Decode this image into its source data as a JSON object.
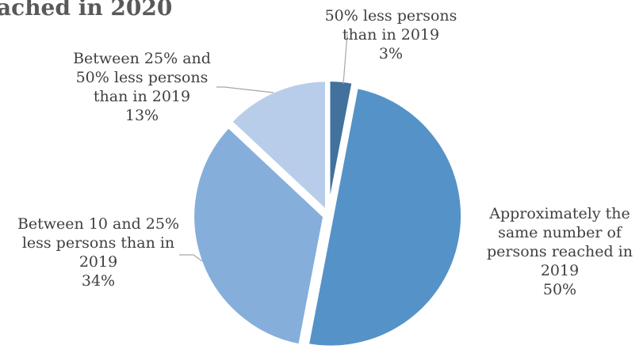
{
  "chart_data": {
    "type": "pie",
    "title": "ached in 2020",
    "slices": [
      {
        "label": [
          "50% less persons",
          "than in 2019"
        ],
        "pct_text": "3%",
        "value": 3,
        "color": "#41719c"
      },
      {
        "label": [
          "Approximately the",
          "same number of",
          "persons  reached in",
          "2019"
        ],
        "pct_text": "50%",
        "value": 50,
        "color": "#5592c8"
      },
      {
        "label": [
          "Between 10 and 25%",
          "less persons than in",
          "2019"
        ],
        "pct_text": "34%",
        "value": 34,
        "color": "#85aedb"
      },
      {
        "label": [
          "Between 25% and",
          "50% less persons",
          "than in 2019"
        ],
        "pct_text": "13%",
        "value": 13,
        "color": "#b8cde9"
      }
    ]
  }
}
